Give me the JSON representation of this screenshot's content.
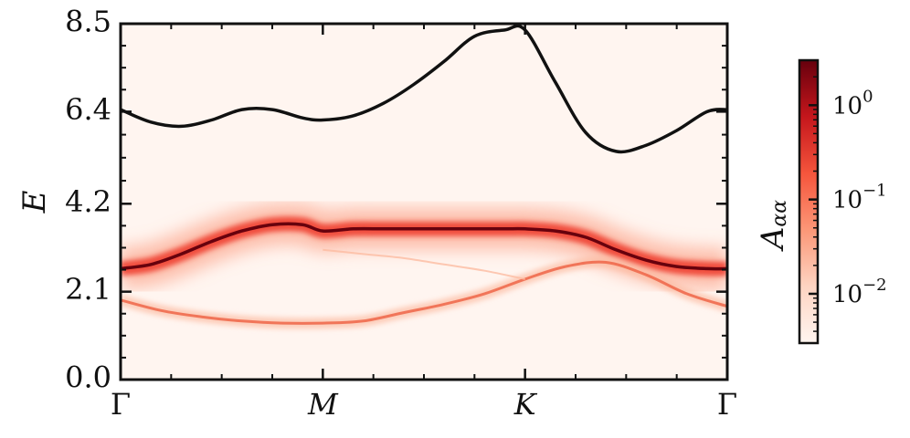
{
  "chart_data": {
    "type": "heatmap",
    "ylabel": "E",
    "ylim": [
      0.0,
      8.5
    ],
    "y_ticks": [
      "0.0",
      "2.1",
      "4.2",
      "6.4",
      "8.5"
    ],
    "x_ticks": [
      "Γ",
      "M",
      "K",
      "Γ"
    ],
    "xlim": [
      0,
      3
    ],
    "colorbar": {
      "label": "A",
      "label_subscript": "αα",
      "scale": "log",
      "colormap": "Reds",
      "range": [
        0.003,
        3.0
      ],
      "ticks": [
        {
          "base": "10",
          "exp": "0",
          "value": 1.0
        },
        {
          "base": "10",
          "exp": "−1",
          "value": 0.1
        },
        {
          "base": "10",
          "exp": "−2",
          "value": 0.01
        }
      ]
    },
    "series": [
      {
        "kind": "line",
        "color": "#111111",
        "x": [
          0.0,
          0.15,
          0.3,
          0.45,
          0.6,
          0.75,
          0.9,
          1.0,
          1.15,
          1.3,
          1.45,
          1.6,
          1.75,
          1.9,
          2.0,
          2.15,
          2.3,
          2.45,
          2.6,
          2.75,
          2.9,
          3.0
        ],
        "y": [
          6.45,
          6.15,
          6.05,
          6.2,
          6.45,
          6.45,
          6.25,
          6.2,
          6.3,
          6.6,
          7.05,
          7.6,
          8.2,
          8.35,
          8.35,
          7.1,
          5.9,
          5.45,
          5.6,
          5.95,
          6.4,
          6.45
        ]
      },
      {
        "kind": "band",
        "intensity": "strong",
        "x": [
          0.0,
          0.15,
          0.3,
          0.45,
          0.6,
          0.75,
          0.9,
          1.0,
          1.15,
          1.3,
          1.45,
          1.6,
          1.75,
          1.9,
          2.0,
          2.15,
          2.3,
          2.45,
          2.6,
          2.75,
          2.9,
          3.0
        ],
        "y": [
          2.65,
          2.75,
          3.0,
          3.3,
          3.55,
          3.7,
          3.7,
          3.55,
          3.6,
          3.6,
          3.6,
          3.6,
          3.6,
          3.6,
          3.6,
          3.55,
          3.4,
          3.1,
          2.85,
          2.7,
          2.65,
          2.65
        ]
      },
      {
        "kind": "band",
        "intensity": "weak",
        "x": [
          0.0,
          0.2,
          0.4,
          0.6,
          0.8,
          1.0,
          1.2,
          1.4,
          1.6,
          1.8,
          2.0,
          2.2,
          2.4,
          2.6,
          2.8,
          3.0
        ],
        "y": [
          1.9,
          1.65,
          1.5,
          1.4,
          1.35,
          1.35,
          1.4,
          1.6,
          1.8,
          2.05,
          2.4,
          2.7,
          2.8,
          2.5,
          2.05,
          1.75
        ]
      },
      {
        "kind": "band",
        "intensity": "faint",
        "x": [
          1.0,
          1.2,
          1.4,
          1.6,
          1.8,
          2.0
        ],
        "y": [
          3.1,
          3.0,
          2.9,
          2.75,
          2.6,
          2.4
        ]
      }
    ]
  }
}
